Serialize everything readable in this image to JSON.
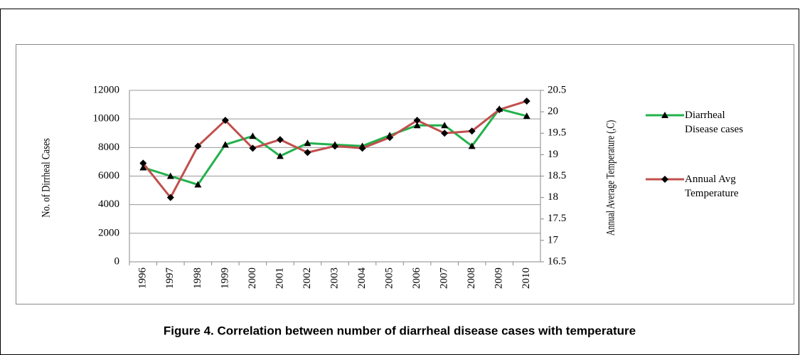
{
  "chart_data": {
    "type": "line",
    "caption": "Figure 4. Correlation between number of diarrheal disease cases with temperature",
    "y_label": "No. of Dirrheal Cases",
    "y2_label": "Annual Average Temperature (,C)",
    "categories": [
      "1996",
      "1997",
      "1998",
      "1999",
      "2000",
      "2001",
      "2002",
      "2003",
      "2004",
      "2005",
      "2006",
      "2007",
      "2008",
      "2009",
      "2010"
    ],
    "series": [
      {
        "name": "Diarrheal Disease cases",
        "color": "#22b14c",
        "marker": "triangle",
        "values": [
          6600,
          6000,
          5400,
          8200,
          8800,
          7400,
          8300,
          8200,
          8100,
          8850,
          9550,
          9550,
          8100,
          10700,
          10200
        ]
      },
      {
        "name": "Annual Avg Temperature",
        "color": "#c0504d",
        "marker": "diamond",
        "axis": "y2",
        "values": [
          18.8,
          18.0,
          19.2,
          19.8,
          19.15,
          19.35,
          19.05,
          19.2,
          19.15,
          19.4,
          19.8,
          19.5,
          19.55,
          20.05,
          20.25
        ]
      }
    ],
    "ylim": [
      0,
      12000
    ],
    "yticks": [
      0,
      2000,
      4000,
      6000,
      8000,
      10000,
      12000
    ],
    "y2lim": [
      16.5,
      20.5
    ],
    "y2ticks": [
      16.5,
      17,
      17.5,
      18,
      18.5,
      19,
      19.5,
      20,
      20.5
    ],
    "grid": true,
    "legend": "right"
  }
}
